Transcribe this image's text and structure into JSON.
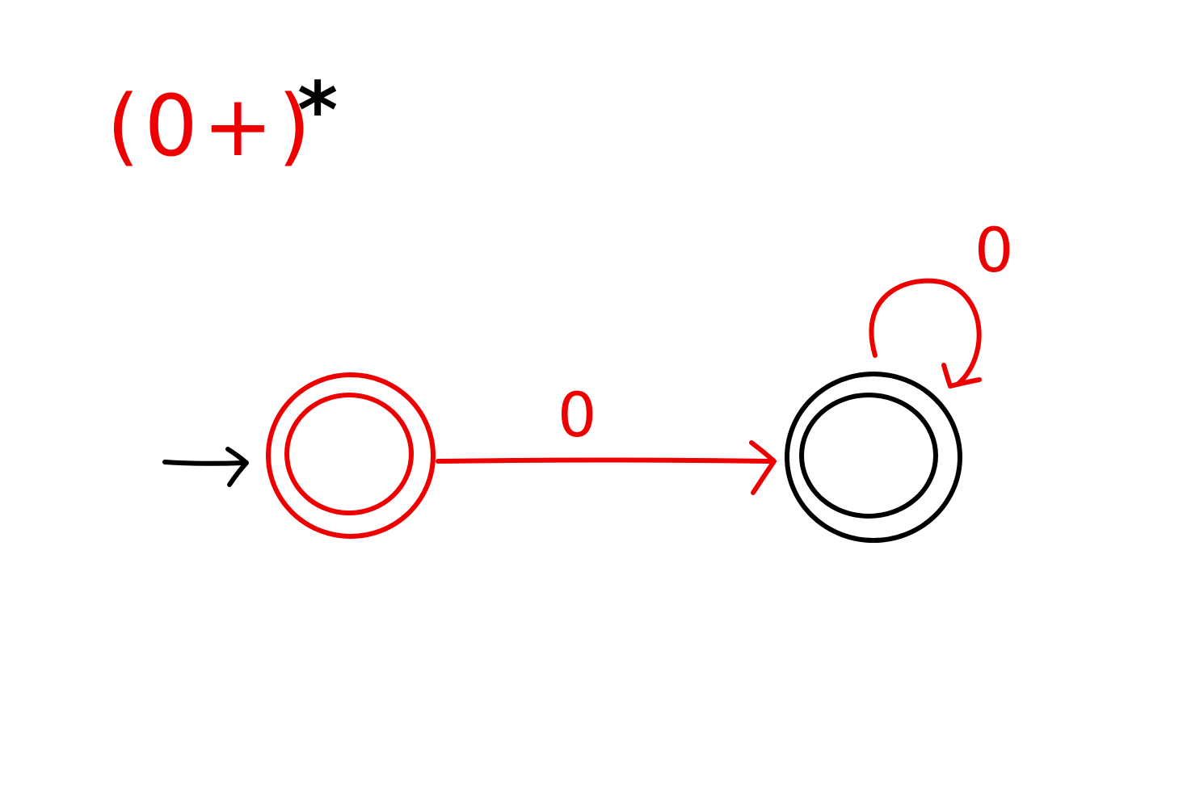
{
  "title": {
    "expression_body": "(0+)",
    "star": "*"
  },
  "colors": {
    "accent": "#ee0000",
    "ink": "#000000",
    "background": "#ffffff"
  },
  "automaton": {
    "states": [
      {
        "id": "q0",
        "start": true,
        "accepting": true,
        "color": "#ee0000"
      },
      {
        "id": "q1",
        "start": false,
        "accepting": true,
        "color": "#000000"
      }
    ],
    "transitions": [
      {
        "from": "q0",
        "to": "q1",
        "symbol": "0"
      },
      {
        "from": "q1",
        "to": "q1",
        "symbol": "0"
      }
    ]
  }
}
